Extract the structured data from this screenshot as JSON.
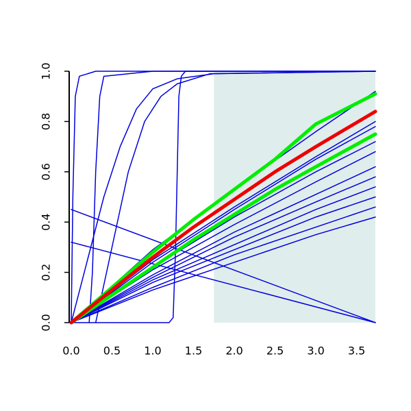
{
  "chart_data": {
    "type": "line",
    "xlim": [
      -0.025,
      3.73
    ],
    "ylim": [
      0,
      1
    ],
    "xticks": [
      {
        "value": 0,
        "label": "0.0"
      },
      {
        "value": 0.5,
        "label": "0.5"
      },
      {
        "value": 1,
        "label": "1.0"
      },
      {
        "value": 1.5,
        "label": "1.5"
      },
      {
        "value": 2,
        "label": "2.0"
      },
      {
        "value": 2.5,
        "label": "2.5"
      },
      {
        "value": 3,
        "label": "3.0"
      },
      {
        "value": 3.5,
        "label": "3.5"
      }
    ],
    "yticks": [
      {
        "value": 0,
        "label": "0.0"
      },
      {
        "value": 0.2,
        "label": "0.2"
      },
      {
        "value": 0.4,
        "label": "0.4"
      },
      {
        "value": 0.6,
        "label": "0.6"
      },
      {
        "value": 0.8,
        "label": "0.8"
      },
      {
        "value": 1,
        "label": "1.0"
      }
    ],
    "shaded_region": {
      "x": [
        1.75,
        3.73
      ],
      "y": [
        0,
        1
      ],
      "color": "#e0eded"
    },
    "series": [
      {
        "color": "#0000dd",
        "width": 1.5,
        "x": [
          0,
          1,
          2,
          3,
          3.73
        ],
        "values": [
          0,
          0.29,
          0.53,
          0.76,
          0.92
        ]
      },
      {
        "color": "#0000dd",
        "width": 1.5,
        "x": [
          0,
          1,
          2,
          3,
          3.73
        ],
        "values": [
          0,
          0.25,
          0.46,
          0.66,
          0.8
        ]
      },
      {
        "color": "#0000dd",
        "width": 1.5,
        "x": [
          0,
          1,
          2,
          3,
          3.73
        ],
        "values": [
          0,
          0.24,
          0.45,
          0.65,
          0.78
        ]
      },
      {
        "color": "#0000dd",
        "width": 1.5,
        "x": [
          0,
          1,
          2,
          3,
          3.73
        ],
        "values": [
          0,
          0.22,
          0.42,
          0.6,
          0.72
        ]
      },
      {
        "color": "#0000dd",
        "width": 1.5,
        "x": [
          0,
          1,
          2,
          3,
          3.73
        ],
        "values": [
          0,
          0.21,
          0.39,
          0.56,
          0.68
        ]
      },
      {
        "color": "#0000dd",
        "width": 1.5,
        "x": [
          0,
          1,
          2,
          3,
          3.73
        ],
        "values": [
          0,
          0.19,
          0.36,
          0.51,
          0.62
        ]
      },
      {
        "color": "#0000dd",
        "width": 1.5,
        "x": [
          0,
          1,
          2,
          3,
          3.73
        ],
        "values": [
          0,
          0.18,
          0.34,
          0.48,
          0.58
        ]
      },
      {
        "color": "#0000dd",
        "width": 1.5,
        "x": [
          0,
          1,
          2,
          3,
          3.73
        ],
        "values": [
          0,
          0.17,
          0.31,
          0.45,
          0.54
        ]
      },
      {
        "color": "#0000dd",
        "width": 1.5,
        "x": [
          0,
          1,
          2,
          3,
          3.73
        ],
        "values": [
          0,
          0.16,
          0.29,
          0.42,
          0.5
        ]
      },
      {
        "color": "#0000dd",
        "width": 1.5,
        "x": [
          0,
          1,
          2,
          3,
          3.73
        ],
        "values": [
          0,
          0.14,
          0.27,
          0.38,
          0.46
        ]
      },
      {
        "color": "#0000dd",
        "width": 1.5,
        "x": [
          0,
          1,
          2,
          3,
          3.73
        ],
        "values": [
          0,
          0.13,
          0.24,
          0.35,
          0.42
        ]
      },
      {
        "color": "#0000dd",
        "width": 1.5,
        "x": [
          0,
          0.02,
          0.05,
          0.1,
          0.3,
          1,
          3.73
        ],
        "values": [
          0,
          0.5,
          0.9,
          0.98,
          1,
          1,
          1
        ]
      },
      {
        "color": "#0000dd",
        "width": 1.5,
        "x": [
          0.22,
          0.26,
          0.3,
          0.35,
          0.4,
          1,
          3.73
        ],
        "values": [
          0,
          0.2,
          0.6,
          0.9,
          0.98,
          1,
          1
        ]
      },
      {
        "color": "#0000dd",
        "width": 1.5,
        "x": [
          0,
          0.2,
          0.4,
          0.6,
          0.8,
          1,
          1.3,
          1.75,
          3.73
        ],
        "values": [
          0,
          0.25,
          0.5,
          0.7,
          0.85,
          0.93,
          0.97,
          0.99,
          1
        ]
      },
      {
        "color": "#0000dd",
        "width": 1.5,
        "x": [
          0.3,
          0.5,
          0.7,
          0.9,
          1.1,
          1.3,
          1.7,
          3.73
        ],
        "values": [
          0,
          0.3,
          0.6,
          0.8,
          0.9,
          0.95,
          0.99,
          1
        ]
      },
      {
        "color": "#0000dd",
        "width": 1.5,
        "x": [
          0,
          1.2,
          1.25,
          1.28,
          1.3,
          1.32,
          1.35,
          1.4,
          3.73
        ],
        "values": [
          0,
          0,
          0.02,
          0.3,
          0.6,
          0.9,
          0.98,
          1,
          1
        ]
      },
      {
        "color": "#0000dd",
        "width": 1.5,
        "x": [
          0,
          3.73
        ],
        "values": [
          0.45,
          0
        ]
      },
      {
        "color": "#0000dd",
        "width": 1.5,
        "x": [
          0,
          3.73
        ],
        "values": [
          0.32,
          0
        ]
      },
      {
        "color": "#00ee00",
        "width": 5,
        "x": [
          0,
          0.5,
          1,
          1.5,
          2,
          2.5,
          3,
          3.73
        ],
        "values": [
          0,
          0.14,
          0.28,
          0.41,
          0.53,
          0.65,
          0.79,
          0.91
        ]
      },
      {
        "color": "#00ee00",
        "width": 5,
        "x": [
          0,
          0.5,
          1,
          1.5,
          2,
          2.5,
          3,
          3.73
        ],
        "values": [
          0,
          0.11,
          0.22,
          0.33,
          0.43,
          0.53,
          0.62,
          0.75
        ]
      },
      {
        "color": "#ee0000",
        "width": 5,
        "x": [
          0,
          0.5,
          1,
          1.5,
          2,
          2.5,
          3,
          3.73
        ],
        "values": [
          0,
          0.13,
          0.26,
          0.38,
          0.49,
          0.6,
          0.7,
          0.84
        ]
      }
    ]
  }
}
